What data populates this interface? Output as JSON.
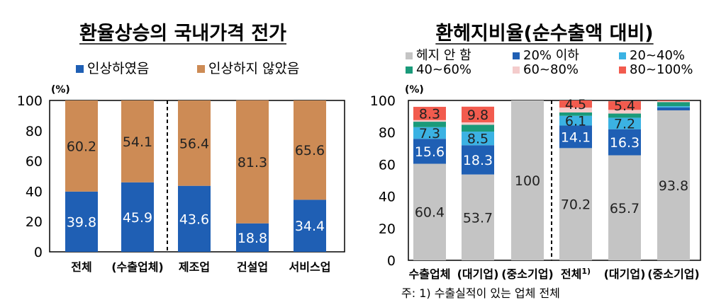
{
  "chart_data": [
    {
      "type": "bar",
      "stacked": true,
      "title": "환율상승의 국내가격 전가",
      "unit_label": "(%)",
      "ylim": [
        0,
        100
      ],
      "yticks": [
        "0",
        "20",
        "40",
        "60",
        "80",
        "100"
      ],
      "categories": [
        "전체",
        "(수출업체)",
        "제조업",
        "건설업",
        "서비스업"
      ],
      "series": [
        {
          "name": "인상하였음",
          "color": "#1f5fb4",
          "values": [
            39.8,
            45.9,
            43.6,
            18.8,
            34.4
          ],
          "labels": [
            "39.8",
            "45.9",
            "43.6",
            "18.8",
            "34.4"
          ]
        },
        {
          "name": "인상하지 않았음",
          "color": "#cd8b55",
          "values": [
            60.2,
            54.1,
            56.4,
            81.3,
            65.6
          ],
          "labels": [
            "60.2",
            "54.1",
            "56.4",
            "81.3",
            "65.6"
          ]
        }
      ],
      "separator_after_index": 1
    },
    {
      "type": "bar",
      "stacked": true,
      "title": "환헤지비율(순수출액 대비)",
      "unit_label": "(%)",
      "ylim": [
        0,
        100
      ],
      "yticks": [
        "0",
        "20",
        "40",
        "60",
        "80",
        "100"
      ],
      "categories": [
        "수출업체",
        "(대기업)",
        "(중소기업)",
        "전체",
        "(대기업)",
        "(중소기업)"
      ],
      "category_superscripts": [
        "",
        "",
        "",
        "1)",
        "",
        ""
      ],
      "series": [
        {
          "name": "헤지 안 함",
          "color": "#c4c4c4",
          "values": [
            60.4,
            53.7,
            100,
            70.2,
            65.7,
            93.8
          ],
          "labels": [
            "60.4",
            "53.7",
            "100",
            "70.2",
            "65.7",
            "93.8"
          ]
        },
        {
          "name": "20% 이하",
          "color": "#1f5fb4",
          "values": [
            15.6,
            18.3,
            0,
            14.1,
            16.3,
            1.8
          ],
          "labels": [
            "15.6",
            "18.3",
            "",
            "14.1",
            "16.3",
            ""
          ]
        },
        {
          "name": "20~40%",
          "color": "#3bb2e3",
          "values": [
            7.3,
            8.5,
            0,
            6.1,
            7.2,
            0.8
          ],
          "labels": [
            "7.3",
            "8.5",
            "",
            "6.1",
            "7.2",
            ""
          ]
        },
        {
          "name": "40~60%",
          "color": "#1a9a7a",
          "values": [
            3.4,
            4.3,
            0,
            2.1,
            2.6,
            2.6
          ],
          "labels": [
            "",
            "",
            "",
            "",
            "",
            ""
          ]
        },
        {
          "name": "60~80%",
          "color": "#f4cccc",
          "values": [
            1.0,
            1.5,
            0,
            3.0,
            2.3,
            0.5
          ],
          "labels": [
            "",
            "",
            "",
            "",
            "",
            ""
          ]
        },
        {
          "name": "80~100%",
          "color": "#f25b4e",
          "values": [
            8.3,
            9.8,
            0,
            4.5,
            5.4,
            0.5
          ],
          "labels": [
            "8.3",
            "9.8",
            "",
            "4.5",
            "5.4",
            ""
          ]
        }
      ],
      "separator_after_index": 2
    }
  ],
  "footnote": "주: 1) 수출실적이 있는 업체 전체"
}
